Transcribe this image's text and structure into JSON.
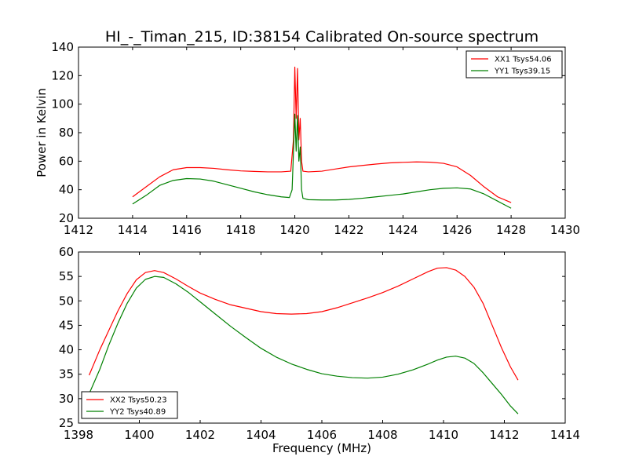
{
  "title": "HI_-_Timan_215, ID:38154 Calibrated On-source spectrum",
  "chart_data": [
    {
      "type": "line",
      "ylabel": "Power in Kelvin",
      "xlabel": "",
      "xlim": [
        1412,
        1430
      ],
      "ylim": [
        20,
        140
      ],
      "xticks": [
        1412,
        1414,
        1416,
        1418,
        1420,
        1422,
        1424,
        1426,
        1428,
        1430
      ],
      "yticks": [
        20,
        40,
        60,
        80,
        100,
        120,
        140
      ],
      "legend": "top-right",
      "series": [
        {
          "name": "XX1 Tsys54.06",
          "color": "#ff0000",
          "x": [
            1414.0,
            1414.5,
            1415.0,
            1415.5,
            1416.0,
            1416.5,
            1417.0,
            1417.5,
            1418.0,
            1418.5,
            1419.0,
            1419.5,
            1419.85,
            1419.95,
            1420.0,
            1420.05,
            1420.1,
            1420.15,
            1420.2,
            1420.25,
            1420.3,
            1420.5,
            1421.0,
            1421.5,
            1422.0,
            1422.5,
            1423.0,
            1423.5,
            1424.0,
            1424.5,
            1425.0,
            1425.5,
            1426.0,
            1426.5,
            1427.0,
            1427.5,
            1428.0
          ],
          "y": [
            35,
            42,
            49,
            54,
            55.5,
            55.5,
            55,
            54,
            53.2,
            52.8,
            52.5,
            52.5,
            53,
            75,
            126,
            90,
            125,
            75,
            90,
            60,
            53,
            52.5,
            53,
            54.5,
            56,
            57,
            58,
            58.8,
            59.2,
            59.5,
            59.3,
            58.5,
            56,
            50,
            42,
            35,
            31
          ]
        },
        {
          "name": "YY1 Tsys39.15",
          "color": "#008000",
          "x": [
            1414.0,
            1414.5,
            1415.0,
            1415.5,
            1416.0,
            1416.5,
            1417.0,
            1417.5,
            1418.0,
            1418.5,
            1419.0,
            1419.5,
            1419.8,
            1419.9,
            1420.0,
            1420.05,
            1420.1,
            1420.15,
            1420.2,
            1420.25,
            1420.3,
            1420.5,
            1421.0,
            1421.5,
            1422.0,
            1422.5,
            1423.0,
            1423.5,
            1424.0,
            1424.5,
            1425.0,
            1425.5,
            1426.0,
            1426.5,
            1427.0,
            1427.5,
            1428.0
          ],
          "y": [
            30,
            36,
            43,
            46.5,
            47.8,
            47.5,
            46,
            43.5,
            41,
            38.5,
            36.5,
            35,
            34.5,
            40,
            93,
            67,
            92,
            60,
            70,
            40,
            34,
            33,
            32.8,
            32.8,
            33.2,
            34,
            35,
            36,
            37,
            38.5,
            40,
            41,
            41.3,
            40.5,
            37,
            32,
            27
          ]
        }
      ]
    },
    {
      "type": "line",
      "ylabel": "",
      "xlabel": "Frequency (MHz)",
      "xlim": [
        1398,
        1414
      ],
      "ylim": [
        25,
        60
      ],
      "xticks": [
        1398,
        1400,
        1402,
        1404,
        1406,
        1408,
        1410,
        1412,
        1414
      ],
      "yticks": [
        25,
        30,
        35,
        40,
        45,
        50,
        55,
        60
      ],
      "legend": "bottom-left",
      "series": [
        {
          "name": "XX2 Tsys50.23",
          "color": "#ff0000",
          "x": [
            1398.35,
            1398.7,
            1399.0,
            1399.3,
            1399.6,
            1399.9,
            1400.2,
            1400.5,
            1400.8,
            1401.2,
            1401.6,
            1402.0,
            1402.5,
            1403.0,
            1403.5,
            1404.0,
            1404.5,
            1405.0,
            1405.5,
            1406.0,
            1406.5,
            1407.0,
            1407.5,
            1408.0,
            1408.5,
            1409.0,
            1409.5,
            1409.8,
            1410.1,
            1410.4,
            1410.7,
            1411.0,
            1411.3,
            1411.6,
            1411.9,
            1412.2,
            1412.45
          ],
          "y": [
            34.8,
            40,
            44,
            48,
            51.5,
            54.3,
            55.8,
            56.2,
            55.8,
            54.5,
            53,
            51.6,
            50.3,
            49.2,
            48.5,
            47.8,
            47.4,
            47.3,
            47.4,
            47.8,
            48.6,
            49.6,
            50.6,
            51.7,
            53,
            54.5,
            56,
            56.7,
            56.8,
            56.3,
            55,
            52.8,
            49.5,
            45,
            40.5,
            36.5,
            33.8
          ]
        },
        {
          "name": "YY2 Tsys40.89",
          "color": "#008000",
          "x": [
            1398.35,
            1398.7,
            1399.0,
            1399.3,
            1399.6,
            1399.9,
            1400.2,
            1400.5,
            1400.8,
            1401.2,
            1401.6,
            1402.0,
            1402.5,
            1403.0,
            1403.5,
            1404.0,
            1404.5,
            1405.0,
            1405.5,
            1406.0,
            1406.5,
            1407.0,
            1407.5,
            1408.0,
            1408.5,
            1409.0,
            1409.5,
            1409.8,
            1410.1,
            1410.4,
            1410.7,
            1411.0,
            1411.3,
            1411.6,
            1411.9,
            1412.2,
            1412.45
          ],
          "y": [
            31,
            36,
            41,
            45.5,
            49.5,
            52.6,
            54.4,
            55,
            54.8,
            53.5,
            51.8,
            49.8,
            47.3,
            44.8,
            42.5,
            40.3,
            38.5,
            37.1,
            36,
            35.1,
            34.6,
            34.3,
            34.2,
            34.4,
            35,
            35.9,
            37.1,
            37.9,
            38.5,
            38.7,
            38.3,
            37.2,
            35.3,
            33.1,
            30.9,
            28.5,
            26.9
          ]
        }
      ]
    }
  ]
}
